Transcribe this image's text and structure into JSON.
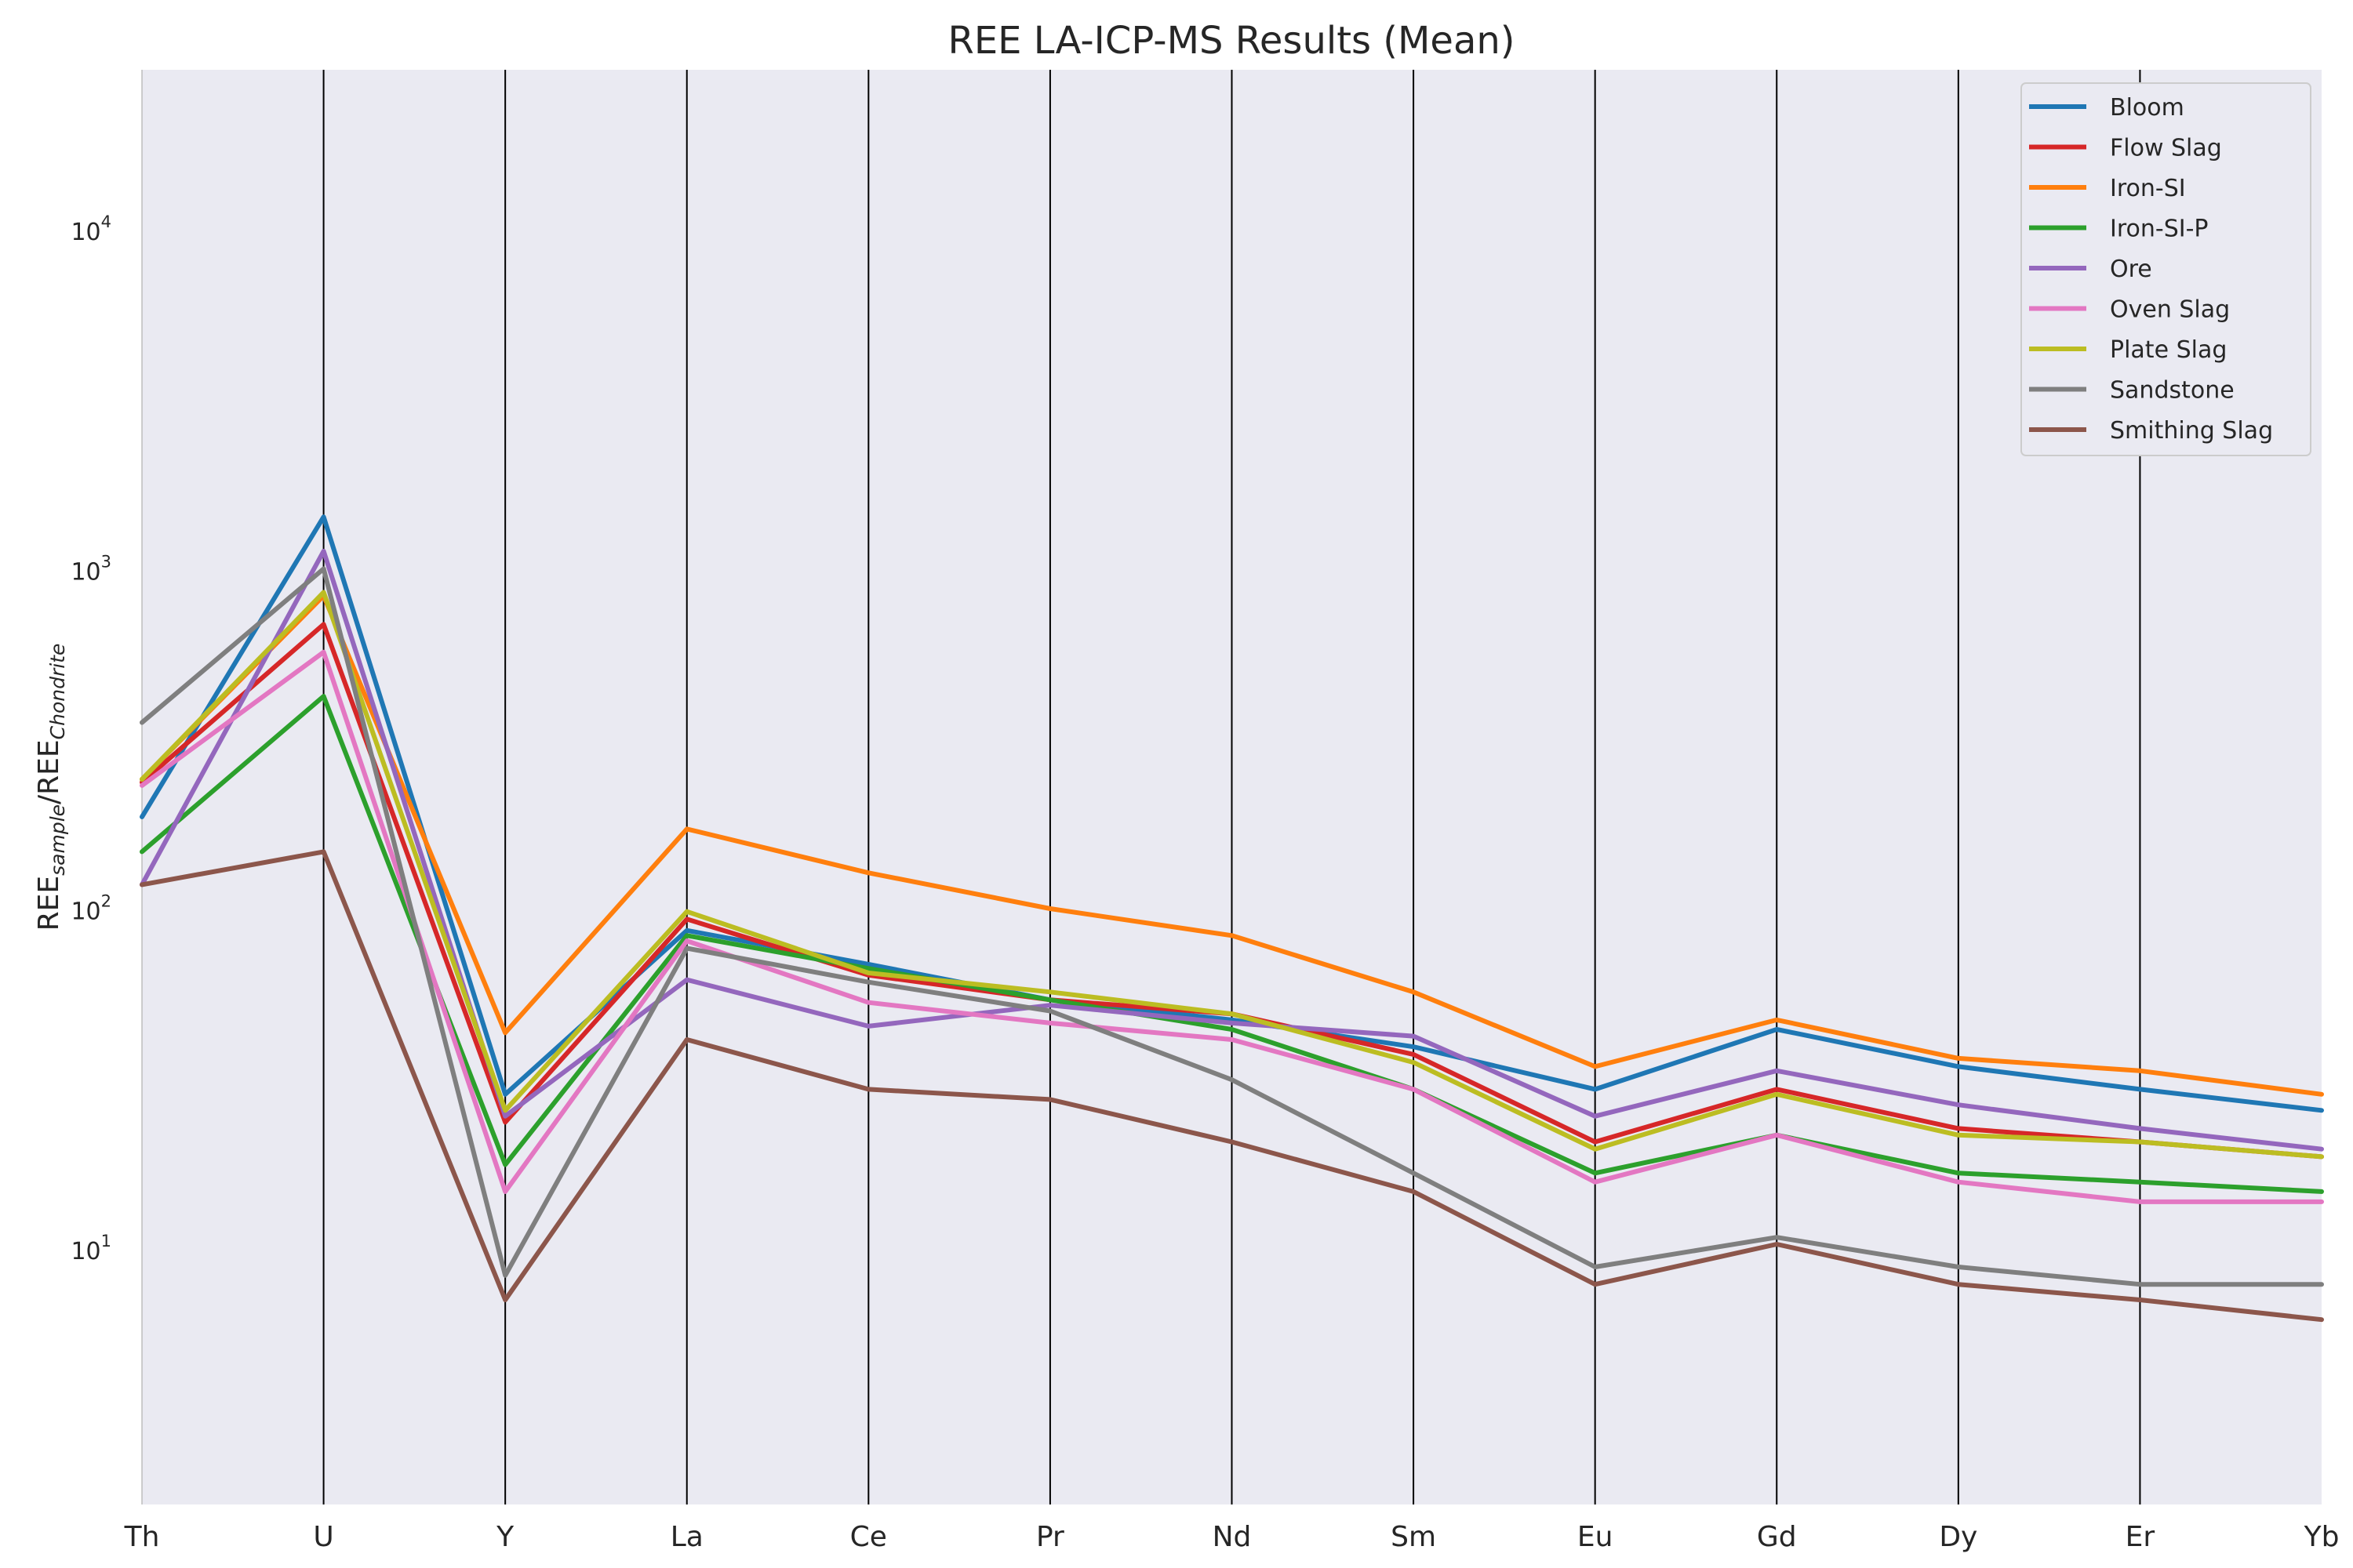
{
  "chart_data": {
    "type": "line",
    "title": "REE LA-ICP-MS Results (Mean)",
    "ylabel": "REE",
    "ylabel_sub1": "sample",
    "ylabel_sep": "/REE",
    "ylabel_sub2": "Chondrite",
    "xlabel": "",
    "yscale": "log",
    "ylim": [
      1.8,
      30000
    ],
    "grid": "vertical lines at each category",
    "legend_position": "top-right",
    "categories": [
      "Th",
      "U",
      "Y",
      "La",
      "Ce",
      "Pr",
      "Nd",
      "Sm",
      "Eu",
      "Gd",
      "Dy",
      "Er",
      "Yb"
    ],
    "yticks": [
      {
        "base": "10",
        "exp": "1",
        "value": 10
      },
      {
        "base": "10",
        "exp": "2",
        "value": 100
      },
      {
        "base": "10",
        "exp": "3",
        "value": 1000
      },
      {
        "base": "10",
        "exp": "4",
        "value": 10000
      }
    ],
    "series": [
      {
        "name": "Bloom",
        "color": "#1f77b4",
        "values": [
          190,
          1450,
          29,
          88,
          70,
          55,
          48,
          40,
          30,
          45,
          35,
          30,
          26
        ]
      },
      {
        "name": "Flow Slag",
        "color": "#d62728",
        "values": [
          240,
          700,
          24,
          95,
          65,
          55,
          50,
          38,
          21,
          30,
          23,
          21,
          19
        ]
      },
      {
        "name": "Iron-SI",
        "color": "#ff7f0e",
        "values": [
          245,
          850,
          44,
          175,
          130,
          102,
          85,
          58,
          35,
          48,
          37,
          34,
          29
        ]
      },
      {
        "name": "Iron-SI-P",
        "color": "#2ca02c",
        "values": [
          150,
          430,
          18,
          85,
          68,
          55,
          45,
          30,
          17,
          22,
          17,
          16,
          15
        ]
      },
      {
        "name": "Ore",
        "color": "#9467bd",
        "values": [
          120,
          1150,
          25,
          63,
          46,
          53,
          47,
          43,
          25,
          34,
          27,
          23,
          20
        ]
      },
      {
        "name": "Oven Slag",
        "color": "#e377c2",
        "values": [
          235,
          580,
          15,
          82,
          54,
          47,
          42,
          30,
          16,
          22,
          16,
          14,
          14
        ]
      },
      {
        "name": "Plate Slag",
        "color": "#bcbd22",
        "values": [
          245,
          870,
          26,
          100,
          66,
          58,
          50,
          36,
          20,
          29,
          22,
          21,
          19
        ]
      },
      {
        "name": "Sandstone",
        "color": "#7f7f7f",
        "values": [
          360,
          1020,
          8.5,
          78,
          62,
          51,
          32,
          17,
          9,
          11,
          9,
          8,
          8
        ]
      },
      {
        "name": "Smithing Slag",
        "color": "#8c564b",
        "values": [
          120,
          150,
          7.2,
          42,
          30,
          28,
          21,
          15,
          8,
          10.5,
          8,
          7.2,
          6.3
        ]
      }
    ]
  }
}
